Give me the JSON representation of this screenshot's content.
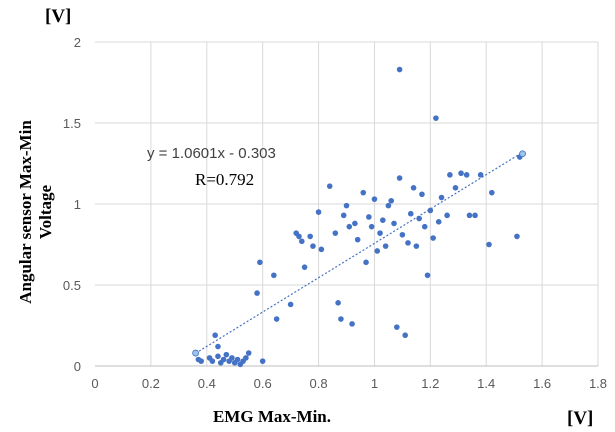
{
  "chart_data": {
    "type": "scatter",
    "xlabel": "EMG Max-Min.",
    "ylabel_lines": [
      "Angular sensor Max-Min",
      "Voltage"
    ],
    "x_unit": "[V]",
    "y_unit": "[V]",
    "xlim": [
      0,
      1.8
    ],
    "ylim": [
      0,
      2
    ],
    "x_ticks": [
      "0",
      "0.2",
      "0.4",
      "0.6",
      "0.8",
      "1",
      "1.2",
      "1.4",
      "1.6",
      "1.8"
    ],
    "y_ticks": [
      "0",
      "0.5",
      "1",
      "1.5",
      "2"
    ],
    "grid": true,
    "trendline": {
      "equation": "y = 1.0601x - 0.303",
      "r_label": "R=0.792",
      "slope": 1.0601,
      "intercept": -0.303,
      "x_range": [
        0.36,
        1.53
      ]
    },
    "marker_color": "#4472c4",
    "highlight_color": "#9dc3e6",
    "highlighted_points": [
      {
        "x": 0.36,
        "y": 0.08
      },
      {
        "x": 1.53,
        "y": 1.31
      }
    ],
    "points": [
      {
        "x": 0.37,
        "y": 0.04
      },
      {
        "x": 0.38,
        "y": 0.03
      },
      {
        "x": 0.41,
        "y": 0.05
      },
      {
        "x": 0.42,
        "y": 0.03
      },
      {
        "x": 0.43,
        "y": 0.19
      },
      {
        "x": 0.44,
        "y": 0.12
      },
      {
        "x": 0.44,
        "y": 0.06
      },
      {
        "x": 0.45,
        "y": 0.02
      },
      {
        "x": 0.46,
        "y": 0.04
      },
      {
        "x": 0.47,
        "y": 0.07
      },
      {
        "x": 0.48,
        "y": 0.03
      },
      {
        "x": 0.49,
        "y": 0.05
      },
      {
        "x": 0.5,
        "y": 0.02
      },
      {
        "x": 0.51,
        "y": 0.04
      },
      {
        "x": 0.52,
        "y": 0.01
      },
      {
        "x": 0.53,
        "y": 0.03
      },
      {
        "x": 0.54,
        "y": 0.05
      },
      {
        "x": 0.55,
        "y": 0.08
      },
      {
        "x": 0.58,
        "y": 0.45
      },
      {
        "x": 0.59,
        "y": 0.64
      },
      {
        "x": 0.6,
        "y": 0.03
      },
      {
        "x": 0.64,
        "y": 0.56
      },
      {
        "x": 0.65,
        "y": 0.29
      },
      {
        "x": 0.7,
        "y": 0.38
      },
      {
        "x": 0.72,
        "y": 0.82
      },
      {
        "x": 0.73,
        "y": 0.8
      },
      {
        "x": 0.74,
        "y": 0.77
      },
      {
        "x": 0.75,
        "y": 0.61
      },
      {
        "x": 0.77,
        "y": 0.8
      },
      {
        "x": 0.78,
        "y": 0.74
      },
      {
        "x": 0.8,
        "y": 0.95
      },
      {
        "x": 0.81,
        "y": 0.72
      },
      {
        "x": 0.84,
        "y": 1.11
      },
      {
        "x": 0.86,
        "y": 0.82
      },
      {
        "x": 0.87,
        "y": 0.39
      },
      {
        "x": 0.88,
        "y": 0.29
      },
      {
        "x": 0.89,
        "y": 0.93
      },
      {
        "x": 0.9,
        "y": 0.99
      },
      {
        "x": 0.91,
        "y": 0.86
      },
      {
        "x": 0.92,
        "y": 0.26
      },
      {
        "x": 0.93,
        "y": 0.88
      },
      {
        "x": 0.94,
        "y": 0.78
      },
      {
        "x": 0.96,
        "y": 1.07
      },
      {
        "x": 0.97,
        "y": 0.64
      },
      {
        "x": 0.98,
        "y": 0.92
      },
      {
        "x": 0.99,
        "y": 0.86
      },
      {
        "x": 1.0,
        "y": 1.03
      },
      {
        "x": 1.01,
        "y": 0.71
      },
      {
        "x": 1.02,
        "y": 0.82
      },
      {
        "x": 1.03,
        "y": 0.9
      },
      {
        "x": 1.04,
        "y": 0.74
      },
      {
        "x": 1.05,
        "y": 0.99
      },
      {
        "x": 1.06,
        "y": 1.02
      },
      {
        "x": 1.07,
        "y": 0.88
      },
      {
        "x": 1.08,
        "y": 0.24
      },
      {
        "x": 1.09,
        "y": 1.83
      },
      {
        "x": 1.09,
        "y": 1.16
      },
      {
        "x": 1.1,
        "y": 0.81
      },
      {
        "x": 1.11,
        "y": 0.19
      },
      {
        "x": 1.12,
        "y": 0.76
      },
      {
        "x": 1.13,
        "y": 0.94
      },
      {
        "x": 1.14,
        "y": 1.1
      },
      {
        "x": 1.15,
        "y": 0.74
      },
      {
        "x": 1.16,
        "y": 0.91
      },
      {
        "x": 1.17,
        "y": 1.06
      },
      {
        "x": 1.18,
        "y": 0.86
      },
      {
        "x": 1.19,
        "y": 0.56
      },
      {
        "x": 1.2,
        "y": 0.96
      },
      {
        "x": 1.21,
        "y": 0.79
      },
      {
        "x": 1.22,
        "y": 1.53
      },
      {
        "x": 1.23,
        "y": 0.89
      },
      {
        "x": 1.24,
        "y": 1.04
      },
      {
        "x": 1.26,
        "y": 0.93
      },
      {
        "x": 1.27,
        "y": 1.18
      },
      {
        "x": 1.29,
        "y": 1.1
      },
      {
        "x": 1.31,
        "y": 1.19
      },
      {
        "x": 1.33,
        "y": 1.18
      },
      {
        "x": 1.34,
        "y": 0.93
      },
      {
        "x": 1.36,
        "y": 0.93
      },
      {
        "x": 1.38,
        "y": 1.18
      },
      {
        "x": 1.41,
        "y": 0.75
      },
      {
        "x": 1.42,
        "y": 1.07
      },
      {
        "x": 1.51,
        "y": 0.8
      },
      {
        "x": 1.52,
        "y": 1.29
      }
    ]
  }
}
